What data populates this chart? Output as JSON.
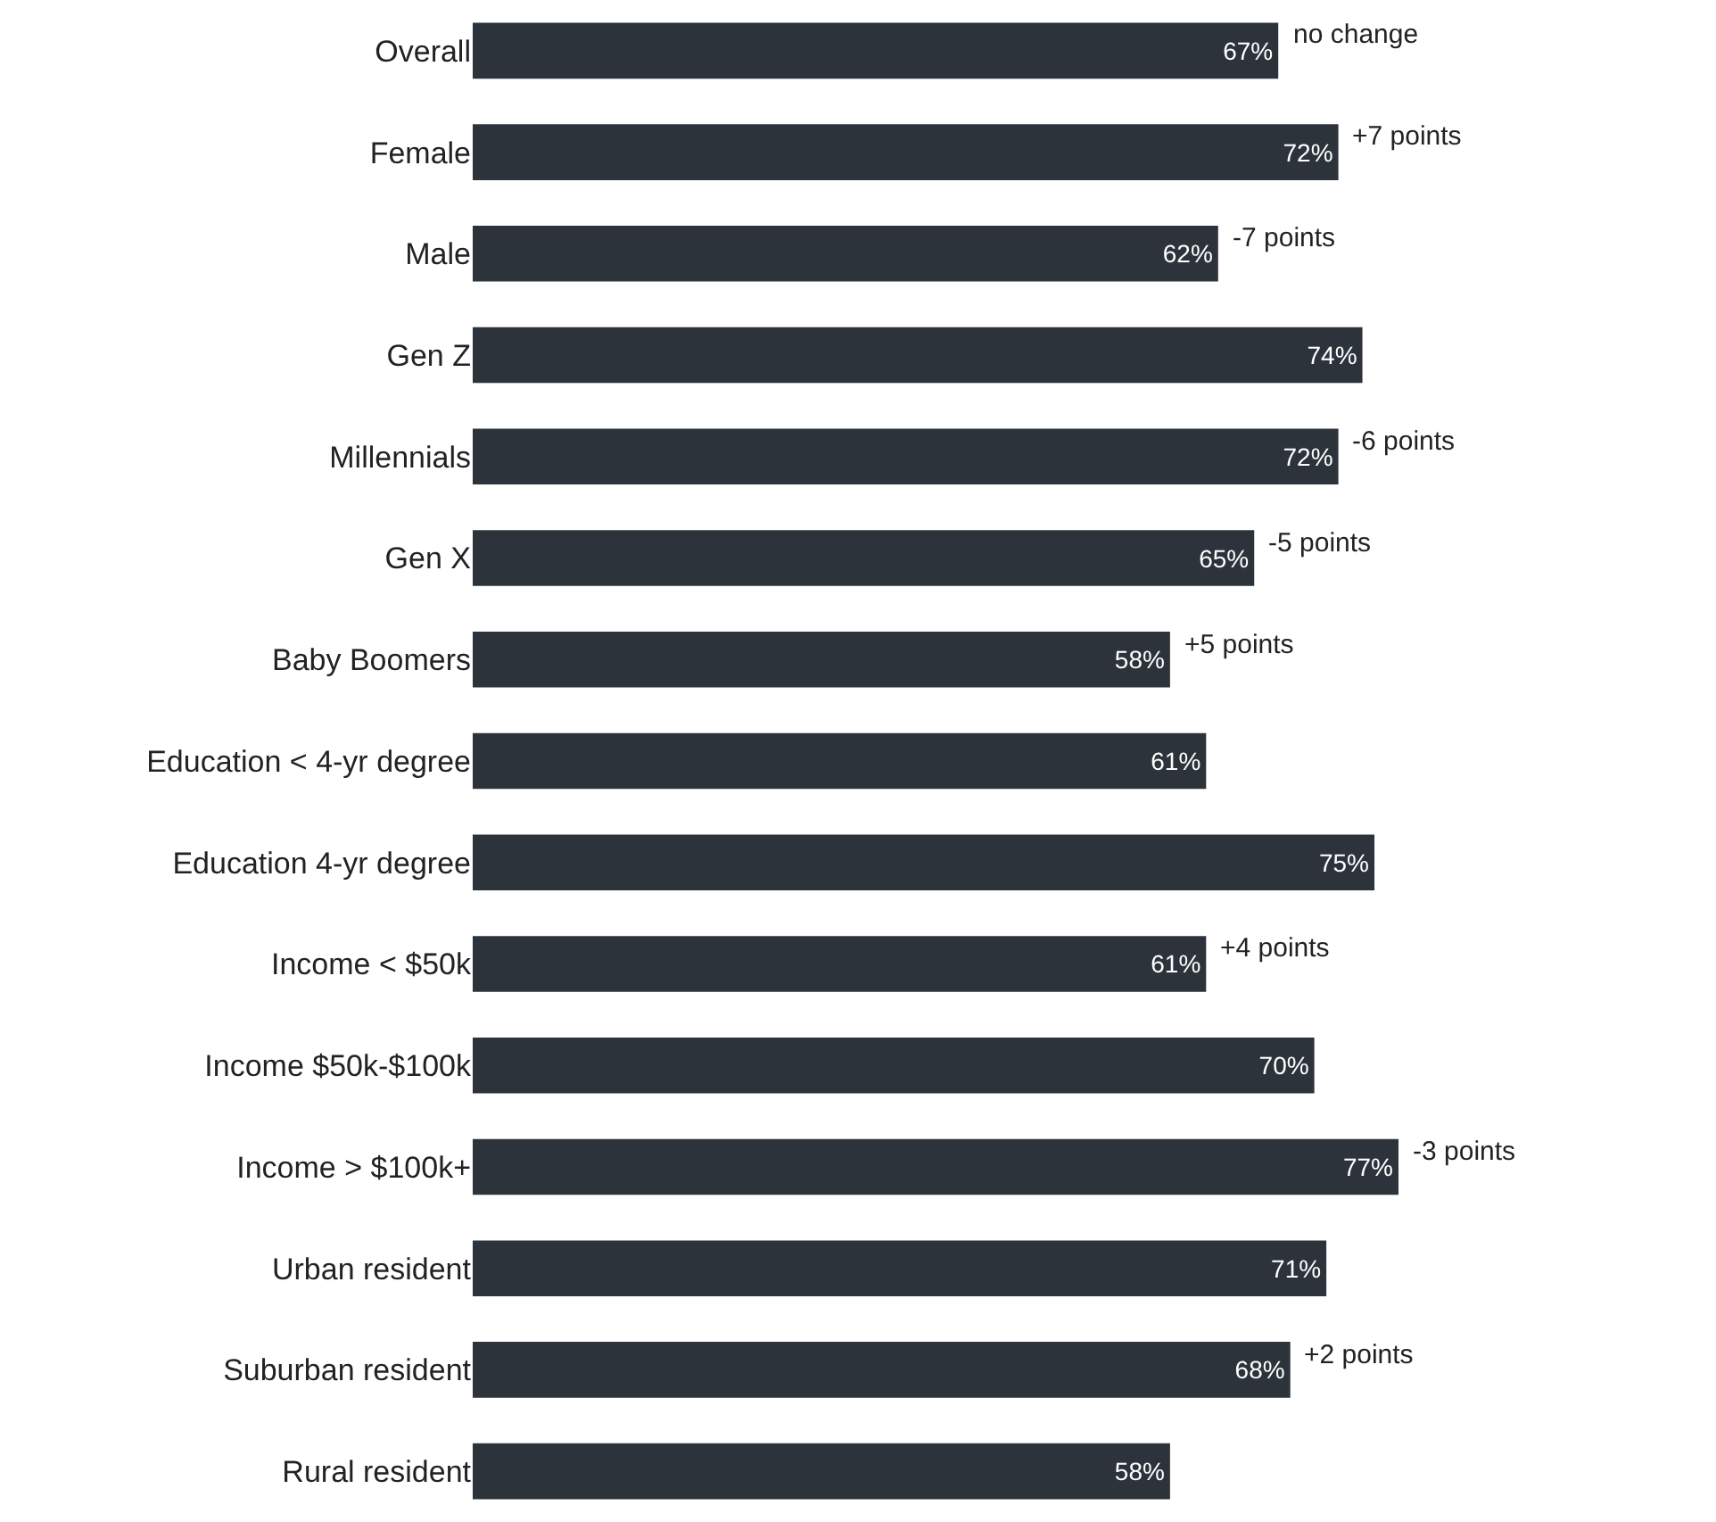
{
  "chart_data": {
    "type": "bar",
    "orientation": "horizontal",
    "categories": [
      "Overall",
      "Female",
      "Male",
      "Gen Z",
      "Millennials",
      "Gen X",
      "Baby Boomers",
      "Education < 4-yr degree",
      "Education 4-yr degree",
      "Income < $50k",
      "Income $50k-$100k",
      "Income > $100k+",
      "Urban resident",
      "Suburban resident",
      "Rural resident"
    ],
    "values": [
      67,
      72,
      62,
      74,
      72,
      65,
      58,
      61,
      75,
      61,
      70,
      77,
      71,
      68,
      58
    ],
    "value_labels": [
      "67%",
      "72%",
      "62%",
      "74%",
      "72%",
      "65%",
      "58%",
      "61%",
      "75%",
      "61%",
      "70%",
      "77%",
      "71%",
      "68%",
      "58%"
    ],
    "color": "#2d333b",
    "tick_labels": "y",
    "grid": false,
    "legend": false,
    "annotations": [
      {
        "text": "no change",
        "x": 67,
        "y": "Overall"
      },
      {
        "text": "+7 points",
        "x": 72,
        "y": "Female"
      },
      {
        "text": "-7 points",
        "x": 62,
        "y": "Male"
      },
      {
        "text": "-6 points",
        "x": 72,
        "y": "Millennials"
      },
      {
        "text": "-5 points",
        "x": 65,
        "y": "Gen X"
      },
      {
        "text": "+5 points",
        "x": 58,
        "y": "Baby Boomers"
      },
      {
        "text": "+4 points",
        "x": 61,
        "y": "Income < $50k"
      },
      {
        "text": "-3 points",
        "x": 77,
        "y": "Income > $100k+"
      },
      {
        "text": "+2 points",
        "x": 68,
        "y": "Suburban resident"
      }
    ]
  }
}
